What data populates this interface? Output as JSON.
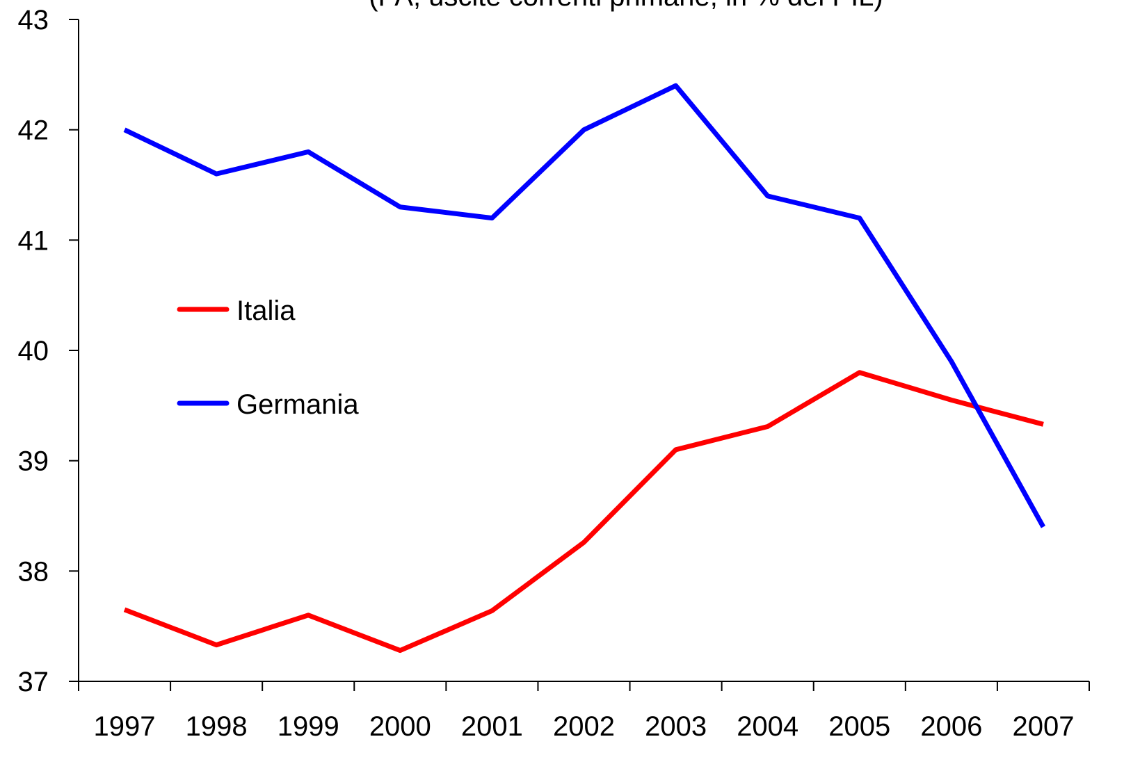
{
  "chart_data": {
    "type": "line",
    "subtitle": "(PA, uscite correnti primarie, in % del PIL)",
    "categories": [
      "1997",
      "1998",
      "1999",
      "2000",
      "2001",
      "2002",
      "2003",
      "2004",
      "2005",
      "2006",
      "2007"
    ],
    "series": [
      {
        "name": "Italia",
        "color": "#ff0000",
        "values": [
          37.65,
          37.33,
          37.6,
          37.28,
          37.64,
          38.26,
          39.1,
          39.31,
          39.8,
          39.55,
          39.33
        ]
      },
      {
        "name": "Germania",
        "color": "#0000ff",
        "values": [
          42.0,
          41.6,
          41.8,
          41.3,
          41.2,
          42.0,
          42.4,
          41.4,
          41.2,
          39.9,
          38.4
        ]
      }
    ],
    "ylim": [
      37,
      43
    ],
    "yticks": [
      37,
      38,
      39,
      40,
      41,
      42,
      43
    ],
    "grid": false,
    "legend": "left"
  }
}
